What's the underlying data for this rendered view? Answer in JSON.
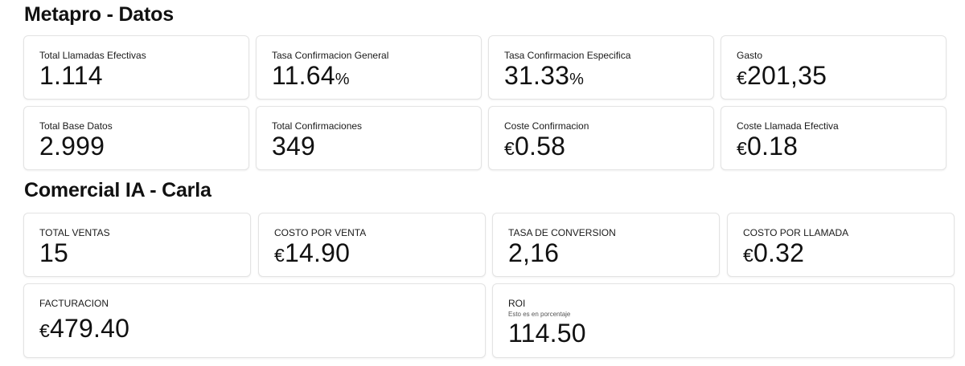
{
  "sections": {
    "metapro": {
      "title": "Metapro - Datos",
      "cards": {
        "total_llamadas": {
          "label": "Total Llamadas Efectivas",
          "value": "1.114"
        },
        "tasa_general": {
          "label": "Tasa Confirmacion General",
          "value": "11.64",
          "unit": "%"
        },
        "tasa_especifica": {
          "label": "Tasa Confirmacion Especifica",
          "value": "31.33",
          "unit": "%"
        },
        "gasto": {
          "label": "Gasto",
          "currency": "€",
          "value": "201,35"
        },
        "total_base": {
          "label": "Total Base Datos",
          "value": "2.999"
        },
        "total_confirmaciones": {
          "label": "Total Confirmaciones",
          "value": "349"
        },
        "coste_confirmacion": {
          "label": "Coste Confirmacion",
          "currency": "€",
          "value": "0.58"
        },
        "coste_llamada": {
          "label": "Coste Llamada Efectiva",
          "currency": "€",
          "value": "0.18"
        }
      }
    },
    "comercial": {
      "title": "Comercial IA - Carla",
      "cards": {
        "total_ventas": {
          "label": "TOTAL VENTAS",
          "value": "15"
        },
        "costo_venta": {
          "label": "COSTO POR VENTA",
          "currency": "€",
          "value": "14.90"
        },
        "tasa_conversion": {
          "label": "TASA DE CONVERSION",
          "value": "2,16"
        },
        "costo_llamada": {
          "label": "COSTO POR LLAMADA",
          "currency": "€",
          "value": "0.32"
        },
        "facturacion": {
          "label": "FACTURACION",
          "currency": "€",
          "value": "479.40"
        },
        "roi": {
          "label": "ROI",
          "sublabel": "Esto es en porcentaje",
          "value": "114.50"
        }
      }
    }
  }
}
